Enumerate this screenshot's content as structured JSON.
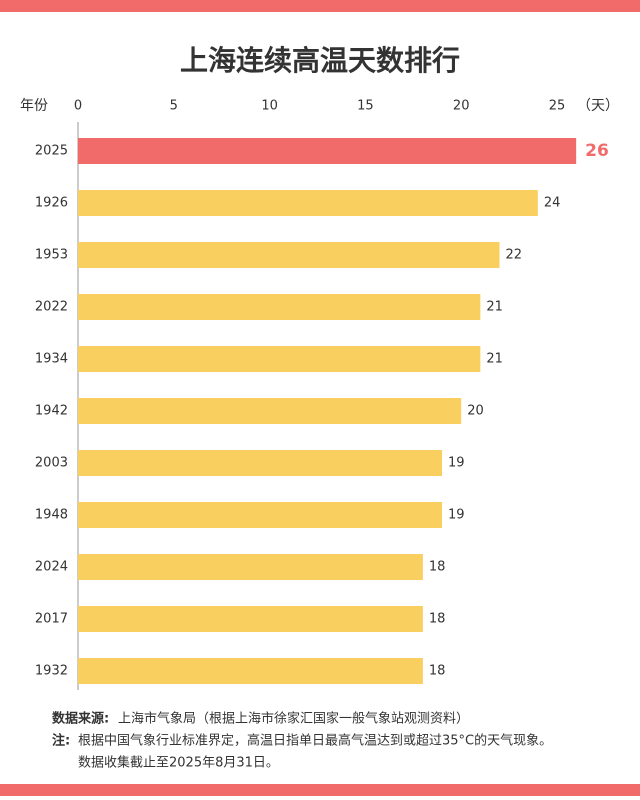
{
  "chart_data": {
    "type": "bar",
    "orientation": "horizontal",
    "title": "上海连续高温天数排行",
    "category_axis_label": "年份",
    "value_axis_label": "（天）",
    "categories": [
      "2025",
      "1926",
      "1953",
      "2022",
      "1934",
      "1942",
      "2003",
      "1948",
      "2024",
      "2017",
      "1932"
    ],
    "values": [
      26,
      24,
      22,
      21,
      21,
      20,
      19,
      19,
      18,
      18,
      18
    ],
    "color": "#f9cf5f",
    "highlight": {
      "index": 0,
      "color": "#f26b6b"
    },
    "xlim": [
      0,
      25
    ],
    "xticks": [
      0,
      5,
      10,
      15,
      20,
      25
    ]
  },
  "notes": {
    "source_label": "数据来源:",
    "source": "上海市气象局（根据上海市徐家汇国家一般气象站观测资料）",
    "note_label": "注:",
    "note_lines": [
      "根据中国气象行业标准界定，高温日指单日最高气温达到或超过35°C的天气现象。",
      "数据收集截止至2025年8月31日。"
    ]
  }
}
